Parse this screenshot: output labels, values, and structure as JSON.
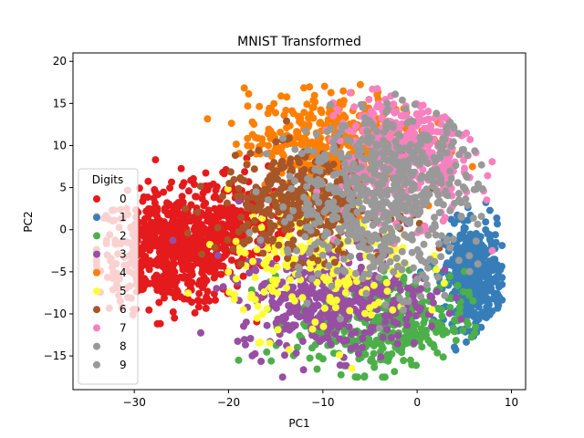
{
  "chart_data": {
    "type": "scatter",
    "title": "MNIST Transformed",
    "xlabel": "PC1",
    "ylabel": "PC2",
    "xlim": [
      -36.5,
      11.5
    ],
    "ylim": [
      -19,
      21
    ],
    "xticks": [
      -30,
      -20,
      -10,
      0,
      10
    ],
    "yticks": [
      -15,
      -10,
      -5,
      0,
      5,
      10,
      15,
      20
    ],
    "xtick_labels": [
      "−30",
      "−20",
      "−10",
      "0",
      "10"
    ],
    "ytick_labels": [
      "−15",
      "−10",
      "−5",
      "0",
      "5",
      "10",
      "15",
      "20"
    ],
    "grid": false,
    "legend": {
      "title": "Digits",
      "placement": "center-left"
    },
    "series": [
      {
        "name": "0",
        "color": "#e41a1c",
        "clusters": [
          {
            "cx": -26,
            "cy": -2.5,
            "sx": 4.0,
            "sy": 3.3,
            "n": 650
          },
          {
            "cx": -20,
            "cy": 1.5,
            "sx": 3.0,
            "sy": 3.0,
            "n": 200
          }
        ]
      },
      {
        "name": "1",
        "color": "#377eb8",
        "clusters": [
          {
            "cx": 6.0,
            "cy": -5.5,
            "sx": 1.5,
            "sy": 3.0,
            "n": 450
          }
        ]
      },
      {
        "name": "2",
        "color": "#4daf4a",
        "clusters": [
          {
            "cx": -4.0,
            "cy": -11.0,
            "sx": 4.5,
            "sy": 3.0,
            "n": 420
          }
        ]
      },
      {
        "name": "3",
        "color": "#984ea3",
        "clusters": [
          {
            "cx": -9.0,
            "cy": -8.0,
            "sx": 5.0,
            "sy": 3.2,
            "n": 420
          }
        ]
      },
      {
        "name": "4",
        "color": "#ff7f00",
        "clusters": [
          {
            "cx": -9.0,
            "cy": 10.5,
            "sx": 4.5,
            "sy": 3.0,
            "n": 450
          }
        ]
      },
      {
        "name": "5",
        "color": "#ffff33",
        "clusters": [
          {
            "cx": -10.0,
            "cy": -4.0,
            "sx": 5.0,
            "sy": 4.0,
            "n": 220
          }
        ]
      },
      {
        "name": "6",
        "color": "#a65628",
        "clusters": [
          {
            "cx": -12.0,
            "cy": 3.0,
            "sx": 4.5,
            "sy": 3.0,
            "n": 380
          }
        ]
      },
      {
        "name": "7",
        "color": "#f781bf",
        "clusters": [
          {
            "cx": -1.0,
            "cy": 9.0,
            "sx": 3.5,
            "sy": 3.8,
            "n": 450
          }
        ]
      },
      {
        "name": "8",
        "color": "#999999",
        "clusters": [
          {
            "cx": -5.0,
            "cy": 3.0,
            "sx": 5.0,
            "sy": 5.0,
            "n": 350
          }
        ]
      },
      {
        "name": "9",
        "color": "#999999",
        "clusters": [
          {
            "cx": -2.0,
            "cy": 6.0,
            "sx": 4.0,
            "sy": 4.5,
            "n": 300
          }
        ]
      }
    ]
  }
}
